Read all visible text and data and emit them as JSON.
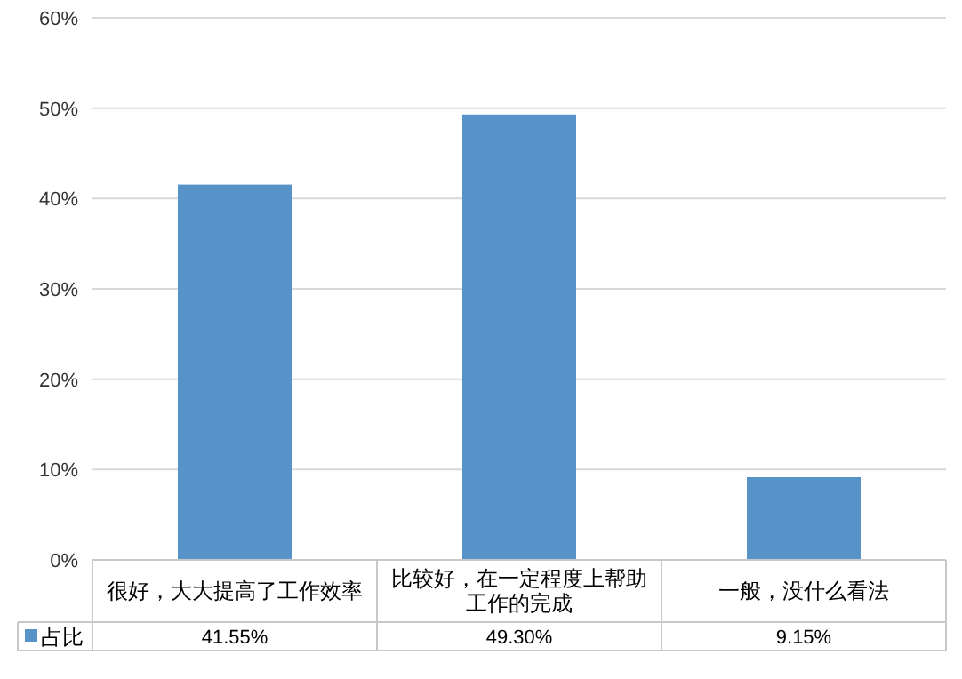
{
  "chart_data": {
    "type": "bar",
    "categories": [
      "很好，大大提高了工作效率",
      "比较好，在一定程度上帮助工作的完成",
      "一般，没什么看法"
    ],
    "series": [
      {
        "name": "占比",
        "color": "#5793c9",
        "values": [
          41.55,
          49.3,
          9.15
        ],
        "value_labels": [
          "41.55%",
          "49.30%",
          "9.15%"
        ]
      }
    ],
    "ylim": [
      0,
      60
    ],
    "yticks": [
      {
        "value": 0,
        "label": "0%"
      },
      {
        "value": 10,
        "label": "10%"
      },
      {
        "value": 20,
        "label": "20%"
      },
      {
        "value": 30,
        "label": "30%"
      },
      {
        "value": 40,
        "label": "40%"
      },
      {
        "value": 50,
        "label": "50%"
      },
      {
        "value": 60,
        "label": "60%"
      }
    ],
    "grid": "y",
    "legend": "bottom"
  }
}
